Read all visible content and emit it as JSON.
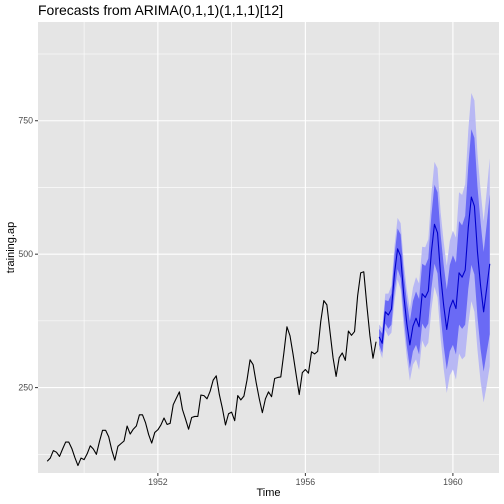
{
  "chart_data": {
    "type": "line",
    "title": "Forecasts from ARIMA(0,1,1)(1,1,1)[12]",
    "xlabel": "Time",
    "ylabel": "training.ap",
    "xlim": [
      1948.75,
      1961.25
    ],
    "ylim": [
      90,
      935
    ],
    "x_ticks": [
      1952,
      1956,
      1960
    ],
    "x_tick_labels": [
      "1952",
      "1956",
      "1960"
    ],
    "y_ticks": [
      250,
      500,
      750
    ],
    "y_tick_labels": [
      "250",
      "500",
      "750"
    ],
    "grid": true,
    "colors": {
      "panel": "#e5e5e5",
      "grid_major": "#ffffff",
      "history_line": "#000000",
      "forecast_line": "#0000cc",
      "band_80": "#6a6af5",
      "band_95": "#b8b8f4"
    },
    "series": [
      {
        "role": "history",
        "start": 1949,
        "frequency": 12,
        "values": [
          112,
          118,
          132,
          129,
          121,
          135,
          148,
          148,
          136,
          119,
          104,
          118,
          115,
          126,
          141,
          135,
          125,
          149,
          170,
          170,
          158,
          133,
          114,
          140,
          145,
          150,
          178,
          163,
          172,
          178,
          199,
          199,
          184,
          162,
          146,
          166,
          171,
          180,
          193,
          181,
          183,
          218,
          230,
          242,
          209,
          191,
          172,
          194,
          196,
          196,
          236,
          235,
          229,
          243,
          264,
          272,
          237,
          211,
          180,
          201,
          204,
          188,
          235,
          227,
          234,
          264,
          302,
          293,
          259,
          229,
          203,
          229,
          242,
          233,
          267,
          269,
          270,
          315,
          364,
          347,
          312,
          274,
          237,
          278,
          284,
          277,
          317,
          313,
          318,
          374,
          413,
          405,
          355,
          306,
          271,
          306,
          315,
          301,
          356,
          348,
          355,
          422,
          465,
          467,
          404,
          347,
          305,
          336
        ]
      },
      {
        "role": "forecast",
        "start": 1958,
        "frequency": 12,
        "values": [
          345,
          333,
          392,
          386,
          397,
          464,
          510,
          496,
          424,
          370,
          330,
          365,
          380,
          364,
          426,
          419,
          431,
          504,
          556,
          540,
          461,
          404,
          359,
          399,
          414,
          398,
          465,
          457,
          470,
          550,
          607,
          590,
          504,
          441,
          392,
          436,
          482
        ],
        "lo80": [
          330,
          315,
          370,
          360,
          368,
          430,
          472,
          455,
          384,
          328,
          286,
          318,
          330,
          312,
          370,
          360,
          370,
          435,
          482,
          464,
          385,
          328,
          284,
          318,
          330,
          312,
          368,
          360,
          368,
          435,
          480,
          462,
          382,
          322,
          280,
          316,
          350
        ],
        "hi80": [
          360,
          351,
          414,
          412,
          426,
          498,
          548,
          537,
          464,
          412,
          374,
          412,
          430,
          416,
          482,
          478,
          492,
          573,
          630,
          616,
          537,
          480,
          434,
          480,
          498,
          484,
          562,
          554,
          572,
          665,
          734,
          718,
          626,
          560,
          504,
          556,
          612
        ],
        "lo95": [
          322,
          305,
          358,
          346,
          353,
          412,
          452,
          434,
          363,
          306,
          263,
          293,
          303,
          283,
          338,
          325,
          334,
          396,
          439,
          419,
          343,
          285,
          240,
          273,
          284,
          265,
          314,
          303,
          309,
          368,
          412,
          392,
          320,
          262,
          222,
          254,
          290
        ],
        "hi95": [
          368,
          361,
          426,
          426,
          441,
          516,
          568,
          558,
          485,
          434,
          397,
          437,
          457,
          445,
          514,
          513,
          528,
          612,
          673,
          661,
          579,
          523,
          478,
          525,
          544,
          531,
          616,
          611,
          631,
          732,
          802,
          788,
          688,
          620,
          562,
          618,
          680
        ]
      }
    ]
  }
}
